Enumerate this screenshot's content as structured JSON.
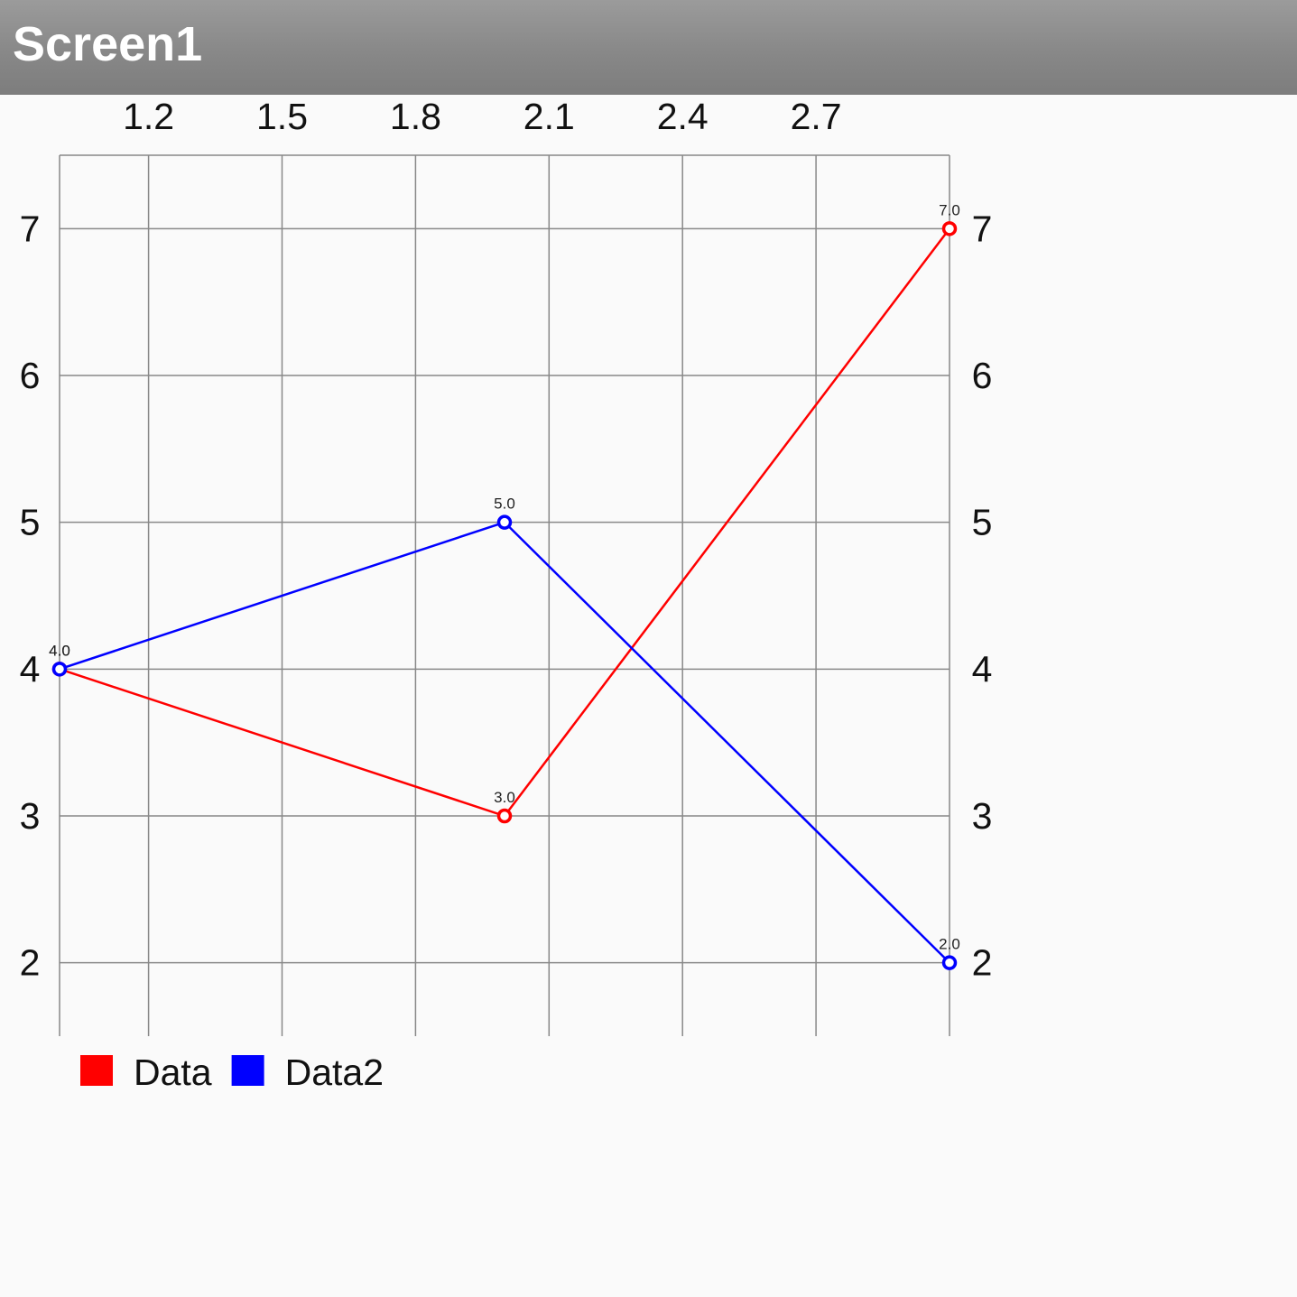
{
  "app": {
    "title": "Screen1"
  },
  "chart_data": {
    "type": "line",
    "x_ticks": [
      "1.2",
      "1.5",
      "1.8",
      "2.1",
      "2.4",
      "2.7"
    ],
    "y_ticks": [
      "2",
      "3",
      "4",
      "5",
      "6",
      "7"
    ],
    "xlim": [
      1.0,
      3.0
    ],
    "ylim": [
      1.5,
      7.5
    ],
    "grid": true,
    "legend_position": "bottom-left",
    "series": [
      {
        "name": "Data",
        "color": "#ff0000",
        "x": [
          1,
          2,
          3
        ],
        "y": [
          4,
          3,
          7
        ],
        "labels": [
          "4.0",
          "3.0",
          "7.0"
        ]
      },
      {
        "name": "Data2",
        "color": "#0000ff",
        "x": [
          1,
          2,
          3
        ],
        "y": [
          4,
          5,
          2
        ],
        "labels": [
          "4.0",
          "5.0",
          "2.0"
        ]
      }
    ]
  }
}
